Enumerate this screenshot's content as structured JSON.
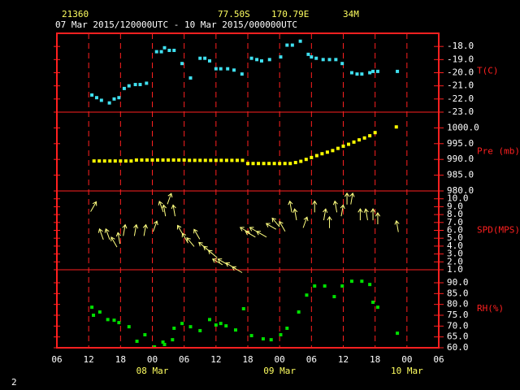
{
  "header": {
    "station": "21360",
    "latitude": "77.50S",
    "longitude": "170.79E",
    "elevation": "34M",
    "period": "07 Mar 2015/120000UTC - 10 Mar 2015/000000UTC"
  },
  "page_number": "2",
  "chart_data": [
    {
      "type": "scatter",
      "label": "T(C)",
      "color": "#40e0f0",
      "x": [
        12.6,
        13.5,
        14.4,
        15.9,
        16.8,
        17.7,
        18.7,
        19.6,
        20.8,
        21.7,
        22.9,
        24.8,
        25.7,
        26.3,
        27.2,
        28.1,
        29.6,
        31.2,
        33,
        33.9,
        34.8,
        36,
        36.9,
        38.2,
        39.4,
        40.9,
        42.7,
        43.7,
        44.6,
        46.1,
        48.2,
        49.4,
        50.4,
        51.9,
        53.4,
        54,
        54.9,
        56.2,
        57.4,
        58.6,
        59.8,
        61.6,
        62.6,
        63.5,
        65,
        65.6,
        66.5,
        70.2
      ],
      "values": [
        -21.7,
        -21.9,
        -22.1,
        -22.3,
        -22,
        -21.9,
        -21.2,
        -21,
        -20.9,
        -20.9,
        -20.8,
        -18.4,
        -18.4,
        -18.1,
        -18.3,
        -18.3,
        -19.3,
        -20.4,
        -18.9,
        -18.9,
        -19.1,
        -19.7,
        -19.7,
        -19.7,
        -19.8,
        -20.1,
        -18.9,
        -19,
        -19.1,
        -19,
        -18.8,
        -17.9,
        -17.9,
        -17.6,
        -18.6,
        -18.8,
        -18.9,
        -19,
        -19,
        -19,
        -19.3,
        -20,
        -20.1,
        -20.1,
        -20,
        -19.9,
        -19.9,
        -19.9
      ],
      "ylim": [
        -23,
        -17
      ],
      "yticks": [
        {
          "value": -18,
          "label": "-18.0"
        },
        {
          "value": -19,
          "label": "-19.0"
        },
        {
          "value": -20,
          "label": "-20.0"
        },
        {
          "value": -21,
          "label": "-21.0"
        },
        {
          "value": -22,
          "label": "-22.0"
        },
        {
          "value": -23,
          "label": "-23.0"
        }
      ]
    },
    {
      "type": "scatter",
      "label": "Pre (mb)",
      "color": "#ffff00",
      "x": [
        13,
        14,
        15,
        16,
        17,
        18,
        19,
        20,
        21,
        22,
        23,
        24,
        25,
        26,
        27,
        28,
        29,
        30,
        31,
        32,
        33,
        34,
        35,
        36,
        37,
        38,
        39,
        40,
        41,
        42,
        43,
        44,
        45,
        46,
        47,
        48,
        49,
        50,
        51,
        52,
        53,
        54,
        55,
        56,
        57,
        58,
        59,
        60,
        61,
        62,
        63,
        64,
        65,
        66,
        70
      ],
      "values": [
        989.5,
        989.5,
        989.5,
        989.5,
        989.5,
        989.5,
        989.5,
        989.5,
        989.8,
        989.8,
        989.8,
        989.8,
        989.8,
        989.8,
        989.8,
        989.8,
        989.8,
        989.8,
        989.7,
        989.7,
        989.7,
        989.7,
        989.7,
        989.7,
        989.7,
        989.7,
        989.7,
        989.7,
        989.7,
        988.7,
        988.7,
        988.7,
        988.7,
        988.7,
        988.7,
        988.7,
        988.7,
        988.7,
        989,
        989.4,
        990,
        990.6,
        991.2,
        991.8,
        992.3,
        992.8,
        993.5,
        994.2,
        994.8,
        995.5,
        996.2,
        996.8,
        997.5,
        998.5,
        1000.3
      ],
      "ylim": [
        980,
        1005
      ],
      "yticks": [
        {
          "value": 1000,
          "label": "1000.0"
        },
        {
          "value": 995,
          "label": "995.0"
        },
        {
          "value": 990,
          "label": "990.0"
        },
        {
          "value": 985,
          "label": "985.0"
        },
        {
          "value": 980,
          "label": "980.0"
        }
      ]
    },
    {
      "type": "vector",
      "label": "SPD(MPS)",
      "color": "#ffff80",
      "x": [
        12.9,
        14.4,
        15.6,
        16.8,
        17.7,
        18.7,
        20.8,
        22.6,
        24.5,
        25.7,
        26.3,
        27.2,
        28.1,
        29.3,
        30.2,
        31.2,
        32.4,
        33.6,
        34.5,
        35.4,
        36.3,
        37.3,
        38.8,
        40,
        41.5,
        42.5,
        43.3,
        44.6,
        46.4,
        47.3,
        48.5,
        50.1,
        51,
        52.8,
        54.6,
        56.5,
        57.4,
        58.6,
        59.8,
        60.7,
        61.6,
        63.2,
        64.4,
        65.6,
        66.5,
        70.2
      ],
      "values": [
        9,
        5.5,
        5.5,
        4.5,
        5,
        6,
        6,
        6,
        6.5,
        9,
        8.5,
        10,
        8.5,
        6,
        5,
        4.5,
        5.5,
        4,
        3.5,
        3,
        2,
        2,
        1.5,
        1,
        6,
        5.5,
        6,
        5.5,
        6.5,
        7,
        6.5,
        9,
        8,
        7,
        9,
        8,
        7,
        9,
        8.5,
        10,
        10,
        8,
        8,
        8,
        7.5,
        6.5
      ],
      "directions": [
        30,
        340,
        340,
        330,
        350,
        10,
        10,
        10,
        20,
        340,
        350,
        20,
        350,
        330,
        330,
        320,
        330,
        310,
        310,
        310,
        300,
        300,
        300,
        300,
        300,
        300,
        300,
        300,
        300,
        320,
        330,
        350,
        350,
        20,
        0,
        10,
        0,
        350,
        10,
        0,
        10,
        0,
        350,
        0,
        0,
        350
      ],
      "ylim": [
        1,
        11
      ],
      "yticks": [
        {
          "value": 10,
          "label": "10.0"
        },
        {
          "value": 9,
          "label": "9.0"
        },
        {
          "value": 8,
          "label": "8.0"
        },
        {
          "value": 7,
          "label": "7.0"
        },
        {
          "value": 6,
          "label": "6.0"
        },
        {
          "value": 5,
          "label": "5.0"
        },
        {
          "value": 4,
          "label": "4.0"
        },
        {
          "value": 3,
          "label": "3.0"
        },
        {
          "value": 2,
          "label": "2.0"
        },
        {
          "value": 1,
          "label": "1.0"
        }
      ]
    },
    {
      "type": "scatter",
      "label": "RH(%)",
      "color": "#00e000",
      "x": [
        12.6,
        12.9,
        14.1,
        15.6,
        16.8,
        17.7,
        19.6,
        21.1,
        22.6,
        24.4,
        26,
        26.3,
        27.8,
        28.1,
        29.6,
        31.2,
        33,
        34.8,
        36,
        36.9,
        37.9,
        39.7,
        41.2,
        42.7,
        44.9,
        46.4,
        48.2,
        49.4,
        51.6,
        53.1,
        54.6,
        56.5,
        58.3,
        59.8,
        61.6,
        63.5,
        65,
        65.6,
        66.5,
        70.2
      ],
      "values": [
        78.7,
        75,
        76.5,
        73,
        72.7,
        71.6,
        69.7,
        63,
        66,
        60.4,
        62.6,
        61.5,
        63.7,
        69,
        71.2,
        69.7,
        67.9,
        73,
        70.5,
        71.2,
        70.1,
        68.2,
        78,
        65.6,
        64.1,
        63.7,
        66,
        69,
        76.5,
        84.3,
        88.5,
        88.5,
        83.6,
        88.5,
        90.7,
        90.7,
        89.2,
        81,
        78.7,
        66.7
      ],
      "ylim": [
        60,
        96
      ],
      "yticks": [
        {
          "value": 90,
          "label": "90.0"
        },
        {
          "value": 85,
          "label": "85.0"
        },
        {
          "value": 80,
          "label": "80.0"
        },
        {
          "value": 75,
          "label": "75.0"
        },
        {
          "value": 70,
          "label": "70.0"
        },
        {
          "value": 65,
          "label": "65.0"
        },
        {
          "value": 60,
          "label": "60.0"
        }
      ],
      "xlim": [
        6,
        78
      ],
      "xticks": [
        {
          "value": 6,
          "label": "06"
        },
        {
          "value": 12,
          "label": "12"
        },
        {
          "value": 18,
          "label": "18"
        },
        {
          "value": 24,
          "label": "00"
        },
        {
          "value": 30,
          "label": "06"
        },
        {
          "value": 36,
          "label": "12"
        },
        {
          "value": 42,
          "label": "18"
        },
        {
          "value": 48,
          "label": "00"
        },
        {
          "value": 54,
          "label": "06"
        },
        {
          "value": 60,
          "label": "12"
        },
        {
          "value": 66,
          "label": "18"
        },
        {
          "value": 72,
          "label": "00"
        },
        {
          "value": 78,
          "label": "06"
        }
      ],
      "date_ticks": [
        {
          "value": 24,
          "label": "08 Mar"
        },
        {
          "value": 48,
          "label": "09 Mar"
        },
        {
          "value": 72,
          "label": "10 Mar"
        }
      ]
    }
  ]
}
